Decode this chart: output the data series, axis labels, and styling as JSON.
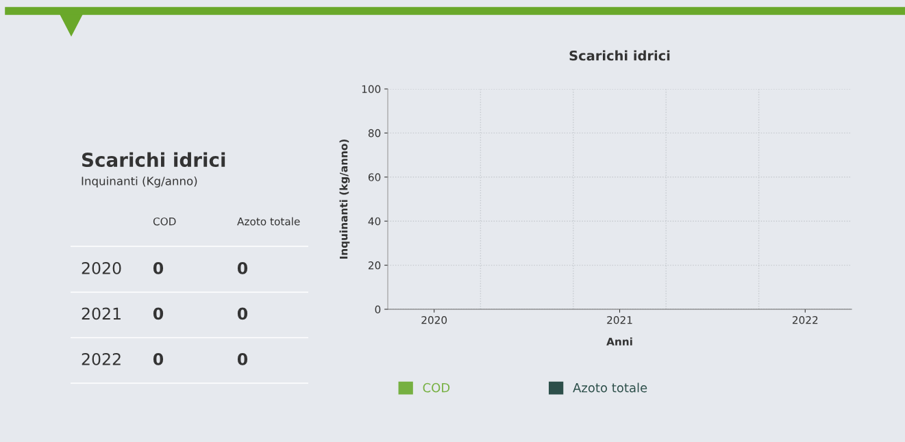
{
  "chart_data": [
    {
      "type": "other",
      "title": "Scarichi idrici",
      "subtitle": "Inquinanti (Kg/anno)",
      "categories": [
        "2020",
        "2021",
        "2022"
      ],
      "series": [
        {
          "name": "COD",
          "values": [
            0,
            0,
            0
          ]
        },
        {
          "name": "Azoto totale",
          "values": [
            0,
            0,
            0
          ]
        }
      ],
      "data_labels": true
    },
    {
      "type": "bar",
      "title": "Scarichi idrici",
      "xlabel": "Anni",
      "ylabel": "Inquinanti (kg/anno)",
      "categories": [
        "2020",
        "2021",
        "2022"
      ],
      "series": [
        {
          "name": "COD",
          "color": "#76b041",
          "values": [
            0,
            0,
            0
          ]
        },
        {
          "name": "Azoto totale",
          "color": "#2d4f4a",
          "values": [
            0,
            0,
            0
          ]
        }
      ],
      "ylim": [
        0,
        100
      ],
      "yticks": [
        0,
        20,
        40,
        60,
        80,
        100
      ],
      "grid": true,
      "legend": "bottom"
    }
  ]
}
